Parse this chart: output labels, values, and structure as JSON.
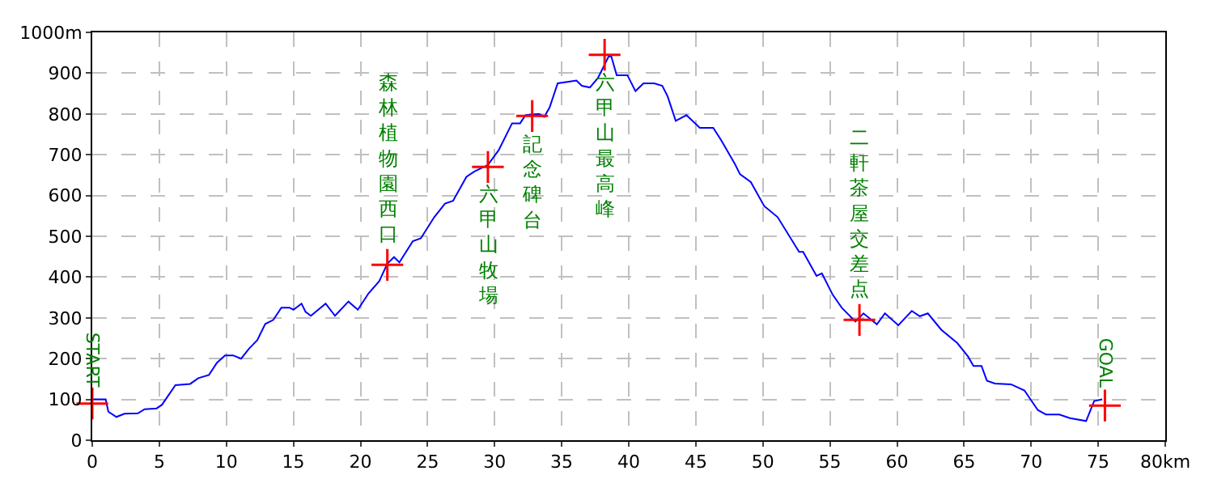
{
  "chart_data": {
    "type": "line",
    "x": [
      0,
      1.0,
      1.2,
      1.8,
      2.4,
      3.4,
      3.9,
      4.8,
      5.2,
      6.2,
      7.3,
      7.9,
      8.7,
      9.3,
      9.9,
      10.5,
      11.1,
      11.7,
      12.3,
      12.9,
      13.5,
      14.1,
      14.7,
      15.0,
      15.6,
      15.9,
      16.3,
      17.4,
      18.1,
      19.1,
      19.8,
      20.6,
      21.4,
      22.0,
      22.5,
      22.9,
      23.9,
      24.5,
      25.5,
      26.3,
      26.9,
      27.9,
      28.5,
      29.5,
      30.3,
      31.3,
      31.9,
      32.3,
      33.3,
      33.7,
      34.1,
      34.7,
      35.5,
      36.1,
      36.5,
      37.1,
      37.7,
      38.5,
      38.7,
      39.1,
      39.9,
      40.5,
      41.1,
      41.9,
      42.5,
      42.9,
      43.5,
      44.3,
      45.3,
      46.3,
      46.9,
      47.9,
      48.3,
      49.1,
      50.1,
      51.1,
      52.7,
      53.0,
      54.0,
      54.4,
      55.2,
      55.9,
      56.9,
      57.5,
      58.5,
      59.1,
      60.1,
      61.1,
      61.7,
      62.3,
      63.3,
      64.5,
      65.3,
      65.7,
      66.3,
      66.7,
      67.3,
      68.5,
      69.5,
      70.5,
      71.1,
      72.1,
      72.9,
      74.1,
      74.7,
      75.3
    ],
    "series": [
      {
        "color": "#0000ff",
        "marker": "none",
        "values": [
          100,
          100,
          70,
          57,
          65,
          66,
          76,
          78,
          87,
          135,
          138,
          152,
          160,
          190,
          208,
          208,
          200,
          225,
          245,
          285,
          295,
          325,
          325,
          320,
          335,
          315,
          305,
          335,
          305,
          340,
          320,
          360,
          390,
          433,
          449,
          436,
          488,
          495,
          547,
          580,
          587,
          646,
          659,
          675,
          711,
          777,
          777,
          797,
          800,
          793,
          816,
          875,
          879,
          882,
          869,
          865,
          888,
          941,
          941,
          895,
          895,
          856,
          875,
          875,
          869,
          843,
          783,
          797,
          766,
          766,
          735,
          678,
          652,
          633,
          574,
          547,
          462,
          462,
          403,
          409,
          357,
          324,
          291,
          311,
          284,
          311,
          282,
          317,
          304,
          311,
          271,
          238,
          205,
          182,
          182,
          146,
          139,
          137,
          122,
          74,
          63,
          63,
          54,
          47,
          96,
          100
        ]
      },
      {
        "type": "scatter",
        "color": "#ff0000",
        "marker": "cross",
        "x": [
          0,
          22.0,
          29.5,
          32.8,
          38.2,
          57.2,
          75.5
        ],
        "values": [
          90,
          430,
          670,
          795,
          945,
          295,
          85
        ]
      }
    ],
    "annotations": [
      {
        "text": "START",
        "x": 0,
        "y": 90
      },
      {
        "text": "森林植物園西口",
        "x": 22.0,
        "y": 430
      },
      {
        "text": "六甲山牧場",
        "x": 29.5,
        "y": 670
      },
      {
        "text": "記念碑台",
        "x": 32.8,
        "y": 795
      },
      {
        "text": "六甲山最高峰",
        "x": 38.2,
        "y": 945
      },
      {
        "text": "二軒茶屋交差点",
        "x": 57.2,
        "y": 295
      },
      {
        "text": "GOAL",
        "x": 75.5,
        "y": 85
      }
    ],
    "xlim": [
      0,
      80
    ],
    "ylim": [
      0,
      1000
    ],
    "xticks": [
      0,
      5,
      10,
      15,
      20,
      25,
      30,
      35,
      40,
      45,
      50,
      55,
      60,
      65,
      70,
      75,
      {
        "value": 80,
        "label": "80km"
      }
    ],
    "yticks": [
      0,
      100,
      200,
      300,
      400,
      500,
      600,
      700,
      800,
      900,
      {
        "value": 1000,
        "label": "1000m"
      }
    ],
    "grid": true,
    "line_style": "solid"
  }
}
